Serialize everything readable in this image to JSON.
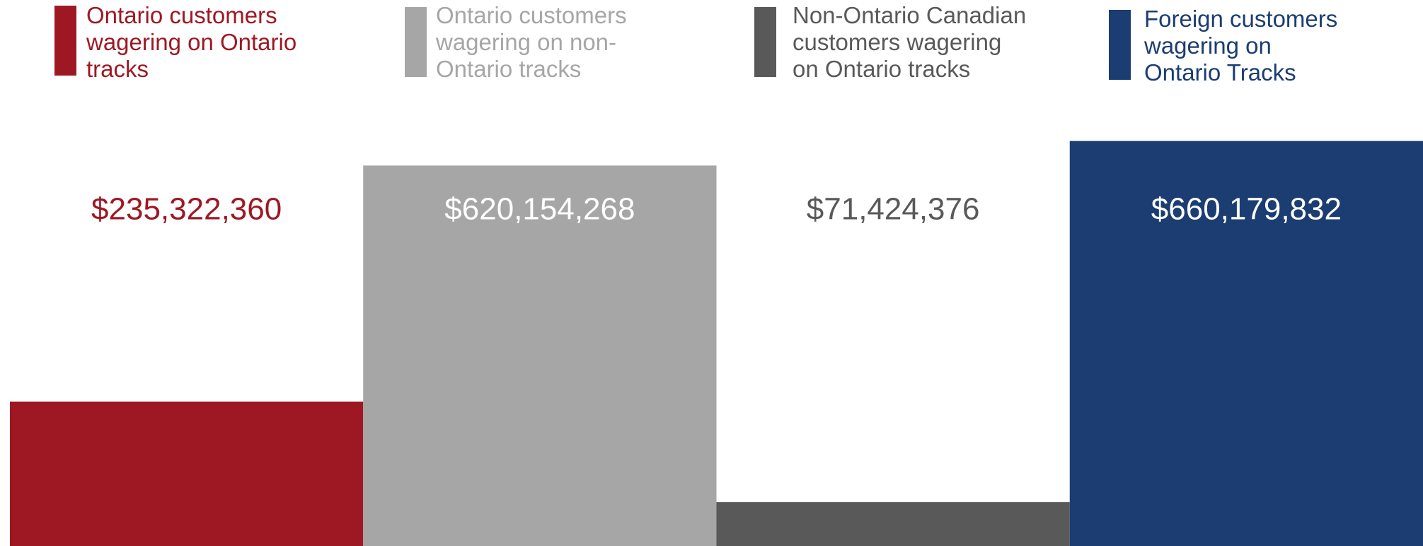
{
  "chart_data": {
    "type": "bar",
    "categories": [
      null,
      null,
      null,
      null
    ],
    "series": [
      {
        "name": "Ontario customers wagering on Ontario tracks",
        "color": "#9e1823",
        "values": [
          235322360,
          null,
          null,
          null
        ],
        "value_labels": [
          "$235,322,360",
          null,
          null,
          null
        ]
      },
      {
        "name": "Ontario customers wagering on non-Ontario tracks",
        "color": "#a6a6a6",
        "values": [
          null,
          620154268,
          null,
          null
        ],
        "value_labels": [
          null,
          "$620,154,268",
          null,
          null
        ]
      },
      {
        "name": "Non-Ontario Canadian customers wagering on Ontario tracks",
        "color": "#595959",
        "values": [
          null,
          null,
          71424376,
          null
        ],
        "value_labels": [
          null,
          null,
          "$71,424,376",
          null
        ]
      },
      {
        "name": "Foreign customers wagering on Ontario Tracks",
        "color": "#1b3d72",
        "values": [
          null,
          null,
          null,
          660179832
        ],
        "value_labels": [
          null,
          null,
          null,
          "$660,179,832"
        ]
      }
    ],
    "ylim": [
      0,
      890000000
    ],
    "legend": "top"
  }
}
